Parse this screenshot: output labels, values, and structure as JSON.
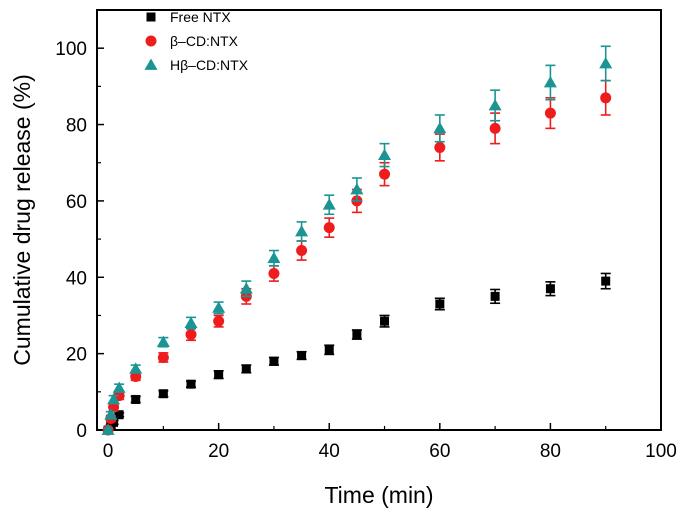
{
  "chart_data": {
    "type": "scatter",
    "title": "",
    "xlabel": "Time (min)",
    "ylabel": "Cumulative drug release (%)",
    "xlim": [
      -2,
      100
    ],
    "ylim": [
      0,
      110
    ],
    "xticks": [
      0,
      20,
      40,
      60,
      80,
      100
    ],
    "yticks": [
      0,
      20,
      40,
      60,
      80,
      100
    ],
    "grid": false,
    "legend_position": "top-left",
    "series": [
      {
        "name": "Free NTX",
        "marker": "square",
        "color": "#000000",
        "x": [
          0,
          0.5,
          1,
          2,
          5,
          10,
          15,
          20,
          25,
          30,
          35,
          40,
          45,
          50,
          60,
          70,
          80,
          90
        ],
        "y": [
          0,
          1,
          2,
          4,
          8,
          9.5,
          12,
          14.5,
          16,
          18,
          19.5,
          21,
          25,
          28.5,
          33,
          35,
          37,
          39
        ],
        "err": [
          0.5,
          0.5,
          0.5,
          0.5,
          0.8,
          0.8,
          0.8,
          1,
          1,
          1,
          1,
          1.2,
          1.2,
          1.5,
          1.5,
          1.8,
          1.8,
          2
        ]
      },
      {
        "name": "β–CD:NTX",
        "marker": "circle",
        "color": "#ee1c1c",
        "x": [
          0,
          0.5,
          1,
          2,
          5,
          10,
          15,
          20,
          25,
          30,
          35,
          40,
          45,
          50,
          60,
          70,
          80,
          90
        ],
        "y": [
          0,
          3,
          6,
          9,
          14,
          19,
          25,
          28.5,
          35,
          41,
          47,
          53,
          60,
          67,
          74,
          79,
          83,
          87
        ],
        "err": [
          0.5,
          0.8,
          1,
          1,
          1,
          1.2,
          1.5,
          1.5,
          2,
          2,
          2.5,
          2.5,
          3,
          3,
          3.5,
          4,
          4,
          4.5
        ]
      },
      {
        "name": "Hβ–CD:NTX",
        "marker": "triangle",
        "color": "#1a9593",
        "x": [
          0,
          0.5,
          1,
          2,
          5,
          10,
          15,
          20,
          25,
          30,
          35,
          40,
          45,
          50,
          60,
          70,
          80,
          90
        ],
        "y": [
          0,
          4,
          8,
          11,
          16,
          23,
          28,
          32,
          37,
          45,
          52,
          59,
          63,
          72,
          79,
          85,
          91,
          96
        ],
        "err": [
          0.5,
          0.8,
          1,
          1,
          1,
          1.2,
          1.5,
          1.5,
          2,
          2,
          2.5,
          2.5,
          3,
          3,
          3.5,
          4,
          4.5,
          4.5
        ]
      }
    ]
  }
}
